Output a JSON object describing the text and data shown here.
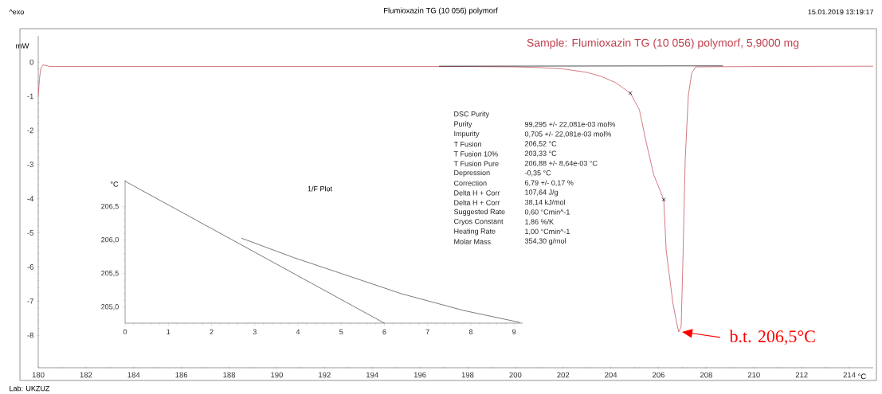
{
  "chart_data": [
    {
      "type": "line",
      "title": "Flumioxazin TG (10 056) polymorf",
      "subtitle": "Sample: Flumioxazin TG (10 056) polymorf, 5,9000 mg",
      "xlabel": "°C",
      "ylabel": "mW",
      "xlim": [
        180,
        215
      ],
      "ylim": [
        -8.95,
        0.77
      ],
      "xticks": [
        180,
        182,
        184,
        186,
        188,
        190,
        192,
        194,
        196,
        198,
        200,
        202,
        204,
        206,
        208,
        210,
        212,
        214
      ],
      "yticks": [
        -8,
        -7,
        -6,
        -5,
        -4,
        -3,
        -2,
        -1,
        0
      ],
      "series": [
        {
          "color": "#c0404e",
          "x": [
            180.0,
            180.05,
            180.1,
            180.2,
            180.5,
            185,
            190,
            195,
            198,
            200,
            201,
            202,
            203,
            203.6,
            204.2,
            204.82,
            205.2,
            205.5,
            205.8,
            206.22,
            206.32,
            206.6,
            206.75,
            206.85,
            206.95,
            207.02,
            207.12,
            207.25,
            207.39,
            207.55,
            210,
            215
          ],
          "values": [
            -0.98,
            -0.5,
            -0.2,
            -0.08,
            -0.13,
            -0.13,
            -0.13,
            -0.13,
            -0.13,
            -0.14,
            -0.16,
            -0.2,
            -0.3,
            -0.42,
            -0.6,
            -0.91,
            -1.4,
            -2.4,
            -3.3,
            -4.03,
            -5.5,
            -7.04,
            -7.6,
            -7.9,
            -7.74,
            -5.9,
            -2.84,
            -0.98,
            -0.33,
            -0.14,
            -0.13,
            -0.12
          ]
        },
        {
          "color": "#000000",
          "x": [
            196.8,
            208.7
          ],
          "values": [
            -0.12,
            -0.11
          ]
        },
        {
          "type": "scatter",
          "color": "#000000",
          "marker": "cross",
          "x": [
            204.82,
            206.22
          ],
          "values": [
            -0.91,
            -4.03
          ]
        }
      ],
      "annotations": [
        "^exo",
        "15.01.2019 13:19:17",
        "Lab: UKZUZ",
        "DSC Purity",
        "Purity",
        "99,295 +/- 22,081e-03 mol%",
        "Impurity",
        "0,705 +/- 22,081e-03 mol%",
        "T Fusion",
        "206,52 °C",
        "T Fusion 10%",
        "203,33 °C",
        "T Fusion Pure",
        "206,88 +/- 8,64e-03 °C",
        "Depression",
        "-0,35 °C",
        "Correction",
        "6,79 +/- 0,17 %",
        "Delta H + Corr",
        "107,64 J/g",
        "Delta H + Corr",
        "38,14 kJ/mol",
        "Suggested Rate",
        "0,60 °Cmin^-1",
        "Cryos Constant",
        "1,86 %/K",
        "Heating Rate",
        "1,00 °Cmin^-1",
        "Molar Mass",
        "354,30 g/mol",
        {
          "text": "b.t. 206,5°C",
          "x": 206.85,
          "y": -7.9
        }
      ]
    },
    {
      "type": "line",
      "title": "1/F Plot",
      "ylabel": "°C",
      "xlim": [
        0,
        9.2
      ],
      "ylim": [
        204.76,
        206.9
      ],
      "xticks": [
        0,
        1,
        2,
        3,
        4,
        5,
        6,
        7,
        8,
        9
      ],
      "yticks": [
        {
          "value": 205,
          "label": "205,0"
        },
        {
          "value": 205.5,
          "label": "205,5"
        },
        {
          "value": 206,
          "label": "206,0"
        },
        {
          "value": 206.5,
          "label": "206,5"
        }
      ],
      "series": [
        {
          "color": "#404040",
          "x": [
            0,
            6.0
          ],
          "values": [
            206.88,
            204.76
          ]
        },
        {
          "color": "#404040",
          "x": [
            2.69,
            3.9,
            5.01,
            6.39,
            7.83,
            9.14
          ],
          "values": [
            206.03,
            205.74,
            205.5,
            205.2,
            204.95,
            204.77
          ]
        }
      ]
    }
  ]
}
